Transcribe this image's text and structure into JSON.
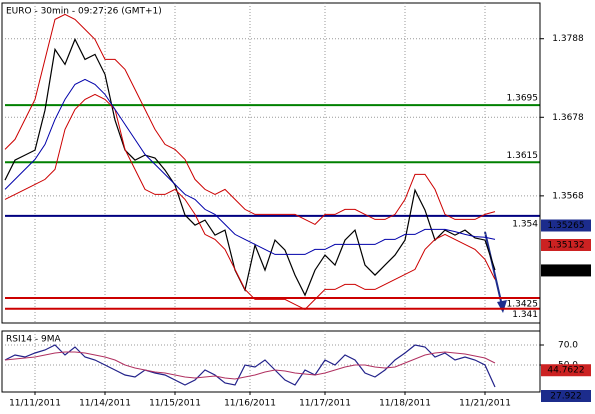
{
  "chart_data": [
    {
      "type": "line",
      "title": "EURO - 30min - 09:27:26 (GMT+1)",
      "x": [
        0,
        2,
        4,
        6,
        8,
        10,
        12,
        14,
        16,
        18,
        20,
        22,
        24,
        26,
        28,
        30,
        32,
        34,
        36,
        38,
        40,
        42,
        44,
        46,
        48,
        50,
        52,
        54,
        56,
        58,
        60,
        62,
        64,
        66,
        68,
        70,
        72,
        74,
        76,
        78,
        80,
        82,
        84,
        86,
        88,
        90,
        92,
        94,
        96,
        98
      ],
      "xlim": [
        0,
        107
      ],
      "ylim": [
        1.339,
        1.3838
      ],
      "yticks": [
        1.3788,
        1.3678,
        1.3568
      ],
      "grid": true,
      "series": [
        {
          "color": "#000000",
          "values": [
            1.359,
            1.3618,
            1.3625,
            1.3632,
            1.3688,
            1.3773,
            1.3752,
            1.3787,
            1.3759,
            1.3766,
            1.3738,
            1.3674,
            1.3632,
            1.3618,
            1.3625,
            1.3621,
            1.3604,
            1.3583,
            1.3541,
            1.3527,
            1.3534,
            1.3513,
            1.352,
            1.3464,
            1.3436,
            1.3499,
            1.3464,
            1.3506,
            1.3492,
            1.3457,
            1.3429,
            1.3464,
            1.3485,
            1.3471,
            1.3506,
            1.352,
            1.3471,
            1.3457,
            1.3471,
            1.3485,
            1.3506,
            1.3576,
            1.3548,
            1.3506,
            1.352,
            1.3513,
            1.352,
            1.3509,
            1.3506,
            1.3464
          ]
        },
        {
          "color": "#cc0000",
          "values": [
            1.3633,
            1.3647,
            1.3675,
            1.3703,
            1.3759,
            1.3815,
            1.3822,
            1.3815,
            1.3801,
            1.3787,
            1.3759,
            1.3759,
            1.3745,
            1.3717,
            1.3689,
            1.3661,
            1.364,
            1.3633,
            1.3619,
            1.3591,
            1.3577,
            1.357,
            1.3577,
            1.3563,
            1.3549,
            1.3542,
            1.3542,
            1.3542,
            1.3542,
            1.3542,
            1.3535,
            1.3528,
            1.3542,
            1.3542,
            1.3549,
            1.3549,
            1.3542,
            1.3535,
            1.3535,
            1.3542,
            1.3563,
            1.3598,
            1.3598,
            1.3577,
            1.3542,
            1.3535,
            1.3535,
            1.3535,
            1.3542,
            1.3546
          ]
        },
        {
          "color": "#cc0000",
          "values": [
            1.3563,
            1.357,
            1.3577,
            1.3584,
            1.3591,
            1.3605,
            1.3661,
            1.3689,
            1.3703,
            1.371,
            1.3703,
            1.3689,
            1.3633,
            1.3605,
            1.3577,
            1.357,
            1.357,
            1.3577,
            1.3563,
            1.3542,
            1.3514,
            1.3507,
            1.3493,
            1.3465,
            1.3437,
            1.3423,
            1.3423,
            1.3423,
            1.3423,
            1.3416,
            1.3409,
            1.3423,
            1.3437,
            1.3437,
            1.3444,
            1.3444,
            1.3437,
            1.3437,
            1.3444,
            1.3451,
            1.3458,
            1.3465,
            1.3493,
            1.3507,
            1.3514,
            1.3507,
            1.35,
            1.3493,
            1.3479,
            1.3451
          ]
        },
        {
          "color": "#0000aa",
          "values": [
            1.3577,
            1.3591,
            1.3605,
            1.3619,
            1.364,
            1.3675,
            1.3703,
            1.3724,
            1.3731,
            1.3724,
            1.371,
            1.3689,
            1.3668,
            1.3647,
            1.3626,
            1.3612,
            1.3598,
            1.3584,
            1.357,
            1.3563,
            1.3549,
            1.3542,
            1.3528,
            1.3514,
            1.3507,
            1.35,
            1.3493,
            1.3486,
            1.3486,
            1.3486,
            1.3486,
            1.3493,
            1.3493,
            1.35,
            1.35,
            1.35,
            1.35,
            1.35,
            1.3507,
            1.3507,
            1.3514,
            1.3514,
            1.3521,
            1.3521,
            1.3521,
            1.3518,
            1.3514,
            1.3511,
            1.351,
            1.3507
          ]
        }
      ],
      "levels": [
        {
          "value": 1.3695,
          "color": "#008000"
        },
        {
          "value": 1.3615,
          "color": "#008000"
        },
        {
          "value": 1.354,
          "color": "#000080"
        },
        {
          "value": 1.3425,
          "color": "#cc0000"
        },
        {
          "value": 1.341,
          "color": "#cc0000"
        }
      ],
      "markers": [
        {
          "value": 1.35265,
          "color": "#1c2c8c"
        },
        {
          "value": 1.35132,
          "color": "#cc2222"
        },
        {
          "value": 1.34636,
          "color": "#000000"
        }
      ]
    },
    {
      "type": "line",
      "title": "RSI14 - 9MA",
      "x": [
        0,
        2,
        4,
        6,
        8,
        10,
        12,
        14,
        16,
        18,
        20,
        22,
        24,
        26,
        28,
        30,
        32,
        34,
        36,
        38,
        40,
        42,
        44,
        46,
        48,
        50,
        52,
        54,
        56,
        58,
        60,
        62,
        64,
        66,
        68,
        70,
        72,
        74,
        76,
        78,
        80,
        82,
        84,
        86,
        88,
        90,
        92,
        94,
        96,
        98
      ],
      "xlim": [
        0,
        107
      ],
      "ylim": [
        23,
        84
      ],
      "yticks": [
        {
          "value": 70,
          "label": "70.0"
        },
        {
          "value": 50,
          "label": "50.0"
        }
      ],
      "xticks": [
        {
          "value": 6,
          "label": "11/11/2011"
        },
        {
          "value": 20,
          "label": "11/14/2011"
        },
        {
          "value": 34,
          "label": "11/15/2011"
        },
        {
          "value": 49,
          "label": "11/16/2011"
        },
        {
          "value": 64,
          "label": "11/17/2011"
        },
        {
          "value": 80,
          "label": "11/18/2011"
        },
        {
          "value": 96,
          "label": "11/21/2011"
        }
      ],
      "grid": true,
      "series": [
        {
          "color": "#22228a",
          "values": [
            55,
            60,
            58,
            62,
            65,
            70,
            60,
            68,
            58,
            55,
            50,
            45,
            40,
            38,
            45,
            42,
            40,
            35,
            30,
            35,
            45,
            40,
            32,
            30,
            50,
            48,
            55,
            45,
            35,
            30,
            45,
            40,
            55,
            50,
            60,
            55,
            42,
            38,
            45,
            55,
            62,
            70,
            68,
            58,
            62,
            55,
            58,
            55,
            50,
            28
          ]
        },
        {
          "color": "#b03060",
          "values": [
            55,
            56,
            57,
            58,
            60,
            62,
            63,
            63,
            62,
            60,
            58,
            55,
            50,
            47,
            45,
            43,
            42,
            40,
            38,
            37,
            38,
            39,
            37,
            36,
            38,
            40,
            43,
            45,
            44,
            42,
            41,
            40,
            42,
            45,
            48,
            50,
            50,
            48,
            47,
            48,
            52,
            56,
            60,
            62,
            63,
            62,
            61,
            59,
            57,
            52
          ]
        }
      ],
      "markers": [
        {
          "value": 44.7622,
          "color": "#cc2222"
        },
        {
          "value": 27.922,
          "color": "#1c2c8c"
        }
      ]
    }
  ]
}
